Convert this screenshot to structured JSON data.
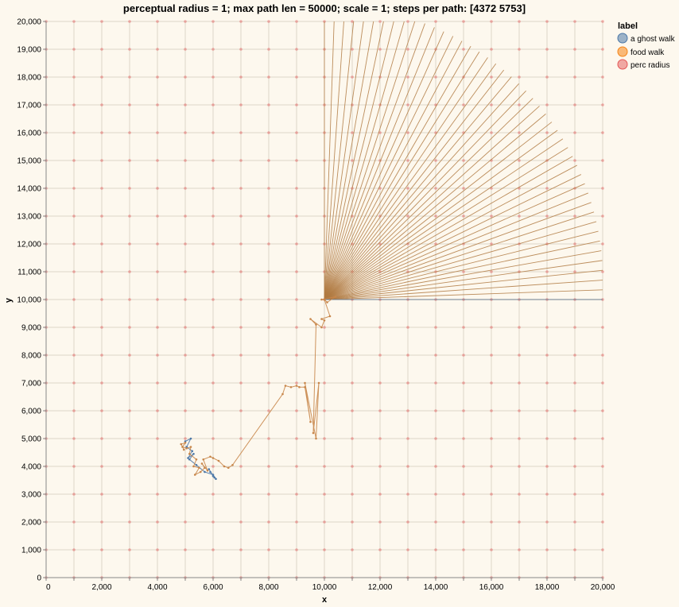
{
  "chart_data": {
    "type": "line",
    "title": "perceptual radius = 1;  max path len = 50000;  scale = 1;  steps per path: [4372 5753]",
    "xlabel": "x",
    "ylabel": "y",
    "xlim": [
      0,
      20000
    ],
    "ylim": [
      0,
      20000
    ],
    "x_ticks": [
      0,
      2000,
      4000,
      6000,
      8000,
      10000,
      12000,
      14000,
      16000,
      18000,
      20000
    ],
    "y_ticks": [
      0,
      1000,
      2000,
      3000,
      4000,
      5000,
      6000,
      7000,
      8000,
      9000,
      10000,
      11000,
      12000,
      13000,
      14000,
      15000,
      16000,
      17000,
      18000,
      19000,
      20000
    ],
    "x_tick_labels": [
      "0",
      "2,000",
      "4,000",
      "6,000",
      "8,000",
      "10,000",
      "12,000",
      "14,000",
      "16,000",
      "18,000",
      "20,000"
    ],
    "y_tick_labels": [
      "0",
      "1,000",
      "2,000",
      "3,000",
      "4,000",
      "5,000",
      "6,000",
      "7,000",
      "8,000",
      "9,000",
      "10,000",
      "11,000",
      "12,000",
      "13,000",
      "14,000",
      "15,000",
      "16,000",
      "17,000",
      "18,000",
      "19,000",
      "20,000"
    ],
    "grid": true,
    "legend": {
      "title": "label",
      "placement": "top-right",
      "entries": [
        "a ghost walk",
        "food walk",
        "perc radius"
      ]
    },
    "colors": {
      "ghost": "#4c78a8",
      "food": "#f58518",
      "perc": "#e45756",
      "background": "#fdf8ee"
    },
    "series": [
      {
        "name": "perc radius",
        "kind": "points",
        "grid_x": {
          "start": 0,
          "stop": 20000,
          "step": 1000
        },
        "grid_y": {
          "start": 0,
          "stop": 20000,
          "step": 1000
        }
      },
      {
        "name": "a ghost walk",
        "kind": "path",
        "x": [
          5000,
          5200,
          5050,
          5250,
          5100,
          5300,
          5150,
          5400,
          5700,
          6000,
          6100,
          5900,
          6050,
          5850,
          6000
        ],
        "y": [
          4900,
          5000,
          4700,
          4550,
          4300,
          4450,
          4250,
          4050,
          3800,
          3700,
          3550,
          3800,
          3600,
          3900,
          3650
        ]
      },
      {
        "name": "food walk",
        "kind": "path",
        "x": [
          4950,
          4850,
          5000,
          4900,
          5050,
          5200,
          5150,
          5400,
          5300,
          5500,
          5350,
          5550,
          5700,
          5600,
          5800,
          5650,
          5900,
          6000,
          6200,
          6400,
          6550,
          6700,
          8500,
          8600,
          8800,
          9000,
          9100,
          9300,
          9500,
          9300,
          9700,
          9800,
          9600,
          9700,
          9500,
          9900,
          10000,
          9900,
          10200,
          10000,
          10100,
          10400,
          9900,
          10000
        ],
        "y": [
          4600,
          4800,
          4850,
          4700,
          4650,
          4700,
          4450,
          4250,
          4000,
          3950,
          3700,
          3800,
          3950,
          4100,
          3850,
          4250,
          4350,
          4300,
          4200,
          4000,
          3950,
          4050,
          6600,
          6900,
          6850,
          6900,
          6850,
          6850,
          5600,
          7000,
          5000,
          7000,
          5200,
          9100,
          9300,
          9000,
          9250,
          9300,
          9400,
          10000,
          9900,
          10100,
          10000,
          10000
        ]
      },
      {
        "name": "food walk",
        "kind": "rays",
        "origin": [
          10000,
          10000
        ],
        "count": 46,
        "angle_range_deg": [
          0,
          90
        ],
        "end_radius_range": [
          10000,
          10600
        ],
        "end_y_cap": 20000
      }
    ]
  }
}
